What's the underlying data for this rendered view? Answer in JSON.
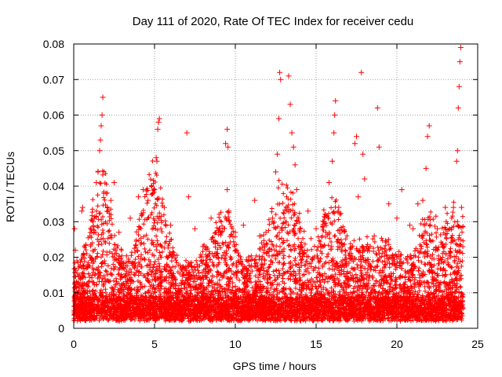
{
  "chart_data": {
    "type": "scatter",
    "title": "Day 111 of 2020, Rate Of TEC Index for receiver cedu",
    "xlabel": "GPS time / hours",
    "ylabel": "ROTI / TECUs",
    "xlim": [
      0,
      25
    ],
    "ylim": [
      0,
      0.08
    ],
    "xticks": [
      0,
      5,
      10,
      15,
      20,
      25
    ],
    "yticks": [
      0,
      0.01,
      0.02,
      0.03,
      0.04,
      0.05,
      0.06,
      0.07,
      0.08
    ],
    "xtick_labels": [
      "0",
      "5",
      "10",
      "15",
      "20",
      "25"
    ],
    "ytick_labels": [
      "0",
      "0.01",
      "0.02",
      "0.03",
      "0.04",
      "0.05",
      "0.06",
      "0.07",
      "0.08"
    ],
    "grid": true,
    "marker": "+",
    "marker_color": "#ff0000",
    "series": [
      {
        "name": "ROTI",
        "points": [
          [
            0.05,
            0.028
          ],
          [
            0.1,
            0.022
          ],
          [
            0.2,
            0.019
          ],
          [
            0.3,
            0.017
          ],
          [
            0.5,
            0.033
          ],
          [
            0.55,
            0.034
          ],
          [
            1.0,
            0.026
          ],
          [
            1.2,
            0.03
          ],
          [
            1.4,
            0.041
          ],
          [
            1.5,
            0.044
          ],
          [
            1.6,
            0.05
          ],
          [
            1.65,
            0.053
          ],
          [
            1.7,
            0.057
          ],
          [
            1.75,
            0.06
          ],
          [
            1.8,
            0.065
          ],
          [
            2.0,
            0.038
          ],
          [
            2.3,
            0.036
          ],
          [
            2.5,
            0.041
          ],
          [
            2.8,
            0.027
          ],
          [
            3.5,
            0.031
          ],
          [
            4.0,
            0.037
          ],
          [
            4.3,
            0.039
          ],
          [
            4.6,
            0.036
          ],
          [
            4.9,
            0.038
          ],
          [
            5.0,
            0.039
          ],
          [
            5.1,
            0.048
          ],
          [
            5.15,
            0.047
          ],
          [
            5.2,
            0.056
          ],
          [
            5.25,
            0.058
          ],
          [
            5.3,
            0.059
          ],
          [
            5.6,
            0.034
          ],
          [
            6.0,
            0.029
          ],
          [
            7.0,
            0.055
          ],
          [
            7.1,
            0.037
          ],
          [
            7.5,
            0.028
          ],
          [
            8.0,
            0.023
          ],
          [
            8.5,
            0.031
          ],
          [
            9.0,
            0.028
          ],
          [
            9.4,
            0.052
          ],
          [
            9.5,
            0.056
          ],
          [
            9.55,
            0.051
          ],
          [
            9.6,
            0.033
          ],
          [
            9.5,
            0.039
          ],
          [
            10.0,
            0.027
          ],
          [
            10.5,
            0.029
          ],
          [
            11.2,
            0.036
          ],
          [
            11.5,
            0.026
          ],
          [
            11.9,
            0.027
          ],
          [
            12.3,
            0.031
          ],
          [
            12.5,
            0.044
          ],
          [
            12.6,
            0.049
          ],
          [
            12.7,
            0.059
          ],
          [
            12.75,
            0.072
          ],
          [
            12.8,
            0.07
          ],
          [
            13.3,
            0.071
          ],
          [
            13.4,
            0.063
          ],
          [
            13.5,
            0.055
          ],
          [
            13.6,
            0.051
          ],
          [
            13.7,
            0.046
          ],
          [
            13.8,
            0.039
          ],
          [
            14.0,
            0.028
          ],
          [
            14.5,
            0.033
          ],
          [
            15.0,
            0.028
          ],
          [
            15.5,
            0.03
          ],
          [
            15.8,
            0.041
          ],
          [
            16.0,
            0.047
          ],
          [
            16.1,
            0.055
          ],
          [
            16.15,
            0.06
          ],
          [
            16.2,
            0.064
          ],
          [
            16.4,
            0.034
          ],
          [
            16.8,
            0.022
          ],
          [
            17.4,
            0.052
          ],
          [
            17.5,
            0.054
          ],
          [
            17.6,
            0.037
          ],
          [
            17.8,
            0.072
          ],
          [
            17.9,
            0.049
          ],
          [
            18.0,
            0.042
          ],
          [
            18.6,
            0.026
          ],
          [
            18.8,
            0.062
          ],
          [
            18.9,
            0.051
          ],
          [
            19.5,
            0.035
          ],
          [
            20.0,
            0.031
          ],
          [
            20.3,
            0.039
          ],
          [
            20.8,
            0.029
          ],
          [
            21.0,
            0.028
          ],
          [
            21.3,
            0.035
          ],
          [
            21.6,
            0.036
          ],
          [
            21.8,
            0.045
          ],
          [
            21.9,
            0.054
          ],
          [
            22.0,
            0.057
          ],
          [
            22.5,
            0.028
          ],
          [
            23.0,
            0.034
          ],
          [
            23.5,
            0.034
          ],
          [
            23.7,
            0.047
          ],
          [
            23.75,
            0.05
          ],
          [
            23.8,
            0.062
          ],
          [
            23.85,
            0.068
          ],
          [
            23.9,
            0.075
          ],
          [
            23.95,
            0.079
          ],
          [
            24.0,
            0.034
          ]
        ]
      }
    ]
  }
}
